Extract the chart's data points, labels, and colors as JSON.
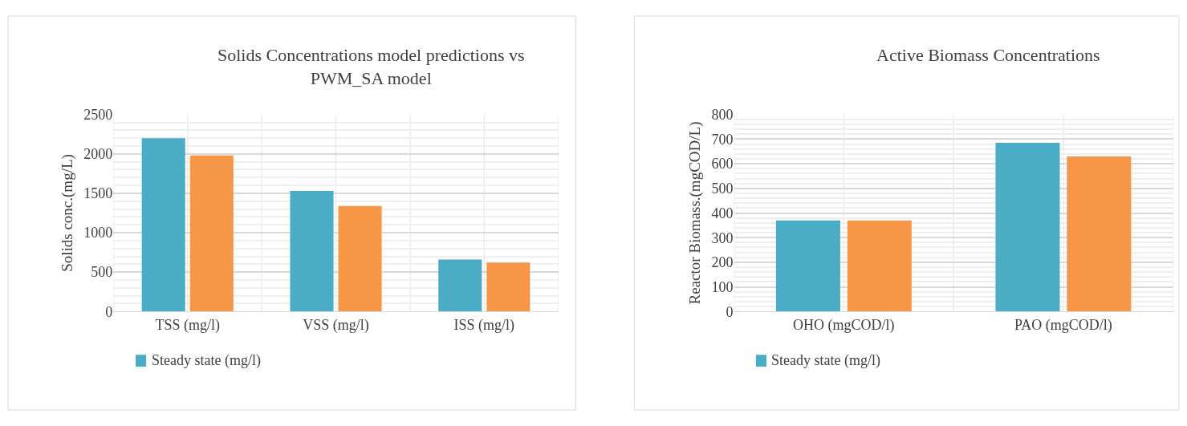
{
  "chart_data": [
    {
      "type": "bar",
      "title": "Solids Concentrations model predictions vs PWM_SA model",
      "ylabel": "Solids conc.(mg/L)",
      "categories": [
        "TSS (mg/l)",
        "VSS (mg/l)",
        "ISS (mg/l)"
      ],
      "series": [
        {
          "name": "Steady state (mg/l)",
          "color": "#4bacc6",
          "values": [
            2200,
            1530,
            660
          ]
        },
        {
          "color": "#f79646",
          "values": [
            1980,
            1340,
            620
          ]
        }
      ],
      "ylim": [
        0,
        2500
      ],
      "yticks": [
        0,
        500,
        1000,
        1500,
        2000,
        2500
      ],
      "grid": true,
      "legend": "bottom"
    },
    {
      "type": "bar",
      "title": "Active Biomass Concentrations",
      "ylabel": "Reactor Biomass.(mgCOD/L)",
      "categories": [
        "OHO (mgCOD/l)",
        "PAO (mgCOD/l)"
      ],
      "series": [
        {
          "name": "Steady state (mg/l)",
          "color": "#4bacc6",
          "values": [
            370,
            685
          ]
        },
        {
          "color": "#f79646",
          "values": [
            370,
            630
          ]
        }
      ],
      "ylim": [
        0,
        800
      ],
      "yticks": [
        0,
        100,
        200,
        300,
        400,
        500,
        600,
        700,
        800
      ],
      "grid": true,
      "legend": "bottom"
    }
  ]
}
